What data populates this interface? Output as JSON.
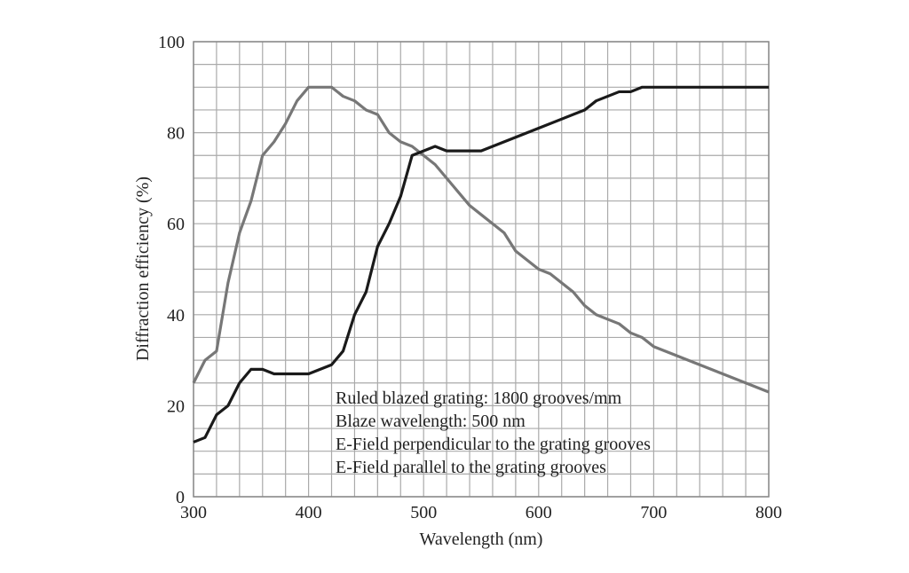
{
  "chart_data": {
    "type": "line",
    "title": "",
    "xlabel": "Wavelength (nm)",
    "ylabel": "Diffraction efficiency (%)",
    "xlim": [
      300,
      800
    ],
    "ylim": [
      0,
      100
    ],
    "xticks": [
      300,
      400,
      500,
      600,
      700,
      800
    ],
    "yticks": [
      0,
      20,
      40,
      60,
      80,
      100
    ],
    "grid": true,
    "grid_x_step": 20,
    "grid_y_step": 5,
    "annotations": [
      "Ruled blazed grating: 1800 grooves/mm",
      "Blaze wavelength: 500 nm",
      "E-Field perpendicular to the grating grooves",
      "E-Field parallel to the grating grooves"
    ],
    "series": [
      {
        "color": "#777777",
        "x": [
          300,
          310,
          320,
          330,
          340,
          350,
          360,
          370,
          380,
          390,
          400,
          420,
          430,
          440,
          450,
          460,
          470,
          480,
          490,
          500,
          510,
          520,
          530,
          540,
          550,
          560,
          570,
          580,
          590,
          600,
          610,
          620,
          630,
          640,
          650,
          660,
          670,
          680,
          690,
          700,
          750,
          800
        ],
        "y": [
          25,
          30,
          32,
          47,
          58,
          65,
          75,
          78,
          82,
          87,
          90,
          90,
          88,
          87,
          85,
          84,
          80,
          78,
          77,
          75,
          73,
          70,
          67,
          64,
          62,
          60,
          58,
          54,
          52,
          50,
          49,
          47,
          45,
          42,
          40,
          39,
          38,
          36,
          35,
          33,
          28,
          23
        ]
      },
      {
        "color": "#1a1a1a",
        "x": [
          300,
          310,
          320,
          330,
          340,
          350,
          360,
          370,
          400,
          410,
          420,
          430,
          440,
          450,
          460,
          470,
          480,
          490,
          500,
          510,
          520,
          550,
          560,
          600,
          640,
          650,
          670,
          680,
          690,
          800
        ],
        "y": [
          12,
          13,
          18,
          20,
          25,
          28,
          28,
          27,
          27,
          28,
          29,
          32,
          40,
          45,
          55,
          60,
          66,
          75,
          76,
          77,
          76,
          76,
          77,
          81,
          85,
          87,
          89,
          89,
          90,
          90
        ]
      }
    ]
  }
}
